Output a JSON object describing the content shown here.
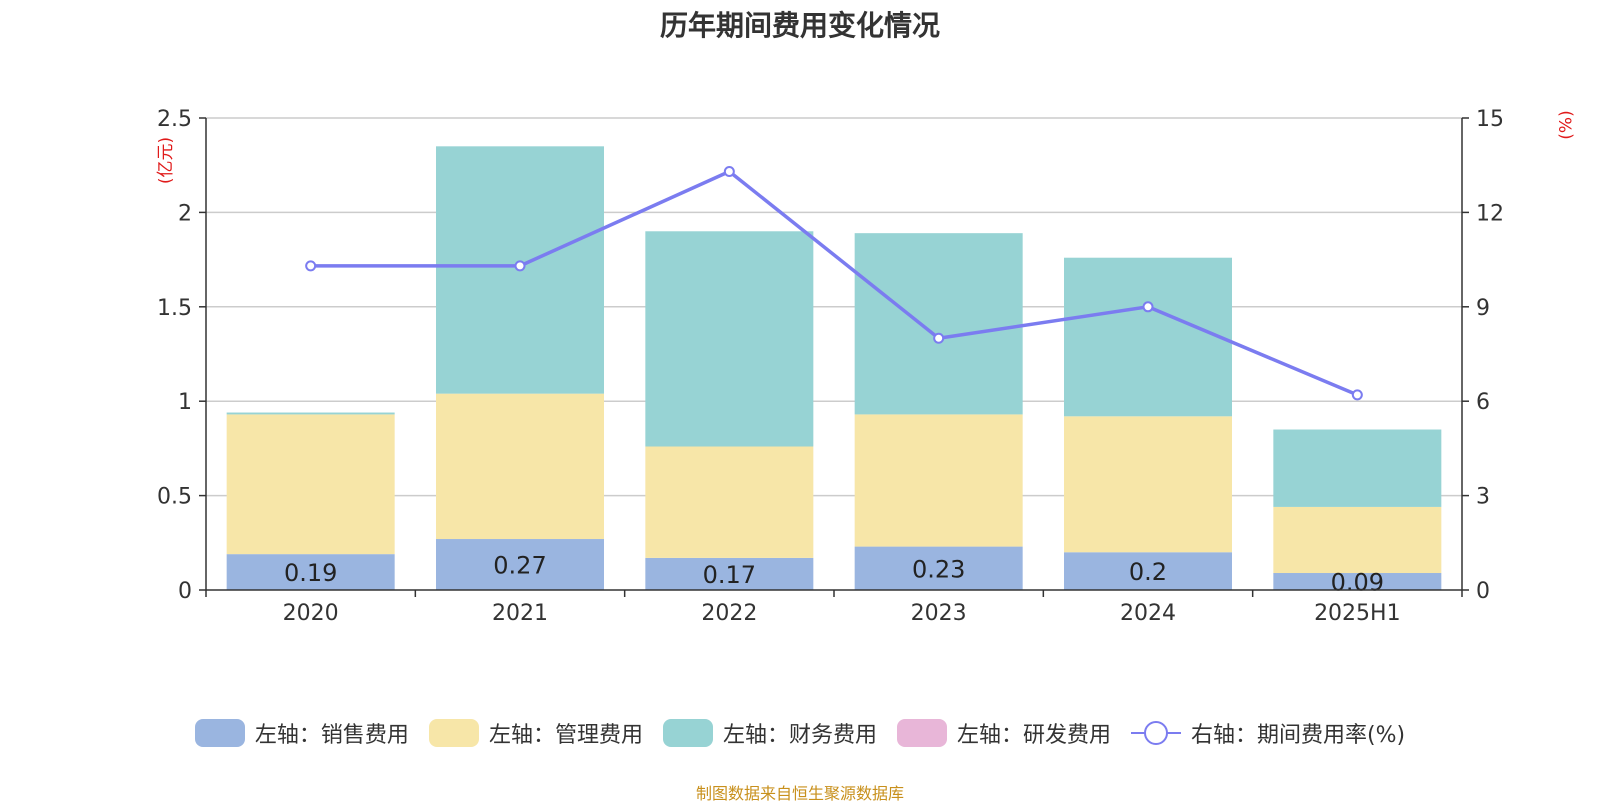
{
  "chart_data": {
    "type": "bar",
    "title": "历年期间费用变化情况",
    "categories": [
      "2020",
      "2021",
      "2022",
      "2023",
      "2024",
      "2025H1"
    ],
    "ylabel_left": "(亿元)",
    "ylabel_right": "(%)",
    "ylim_left": [
      0,
      2.5
    ],
    "ylim_right": [
      0,
      15
    ],
    "yticks_left": [
      "0",
      "0.5",
      "1",
      "1.5",
      "2",
      "2.5"
    ],
    "yticks_right": [
      "0",
      "3",
      "6",
      "9",
      "12",
      "15"
    ],
    "grid": true,
    "stacked": true,
    "series": [
      {
        "name": "左轴：销售费用",
        "axis": "left",
        "color": "#9ab5e0",
        "values": [
          0.19,
          0.27,
          0.17,
          0.23,
          0.2,
          0.09
        ],
        "labels": [
          "0.19",
          "0.27",
          "0.17",
          "0.23",
          "0.2",
          "0.09"
        ]
      },
      {
        "name": "左轴：管理费用",
        "axis": "left",
        "color": "#f7e6a8",
        "values": [
          0.74,
          0.77,
          0.59,
          0.7,
          0.72,
          0.35
        ]
      },
      {
        "name": "左轴：财务费用",
        "axis": "left",
        "color": "#97d3d4",
        "values": [
          0.01,
          1.31,
          1.14,
          0.96,
          0.84,
          0.41
        ]
      },
      {
        "name": "左轴：研发费用",
        "axis": "left",
        "color": "#e8b6d8",
        "values": [
          0,
          0,
          0,
          0,
          0,
          0
        ]
      },
      {
        "name": "右轴：期间费用率(%)",
        "axis": "right",
        "type": "line",
        "color": "#7b7cf0",
        "values": [
          10.3,
          10.3,
          13.3,
          8.0,
          9.0,
          6.2
        ]
      }
    ],
    "legend_position": "bottom"
  },
  "source": "制图数据来自恒生聚源数据库"
}
